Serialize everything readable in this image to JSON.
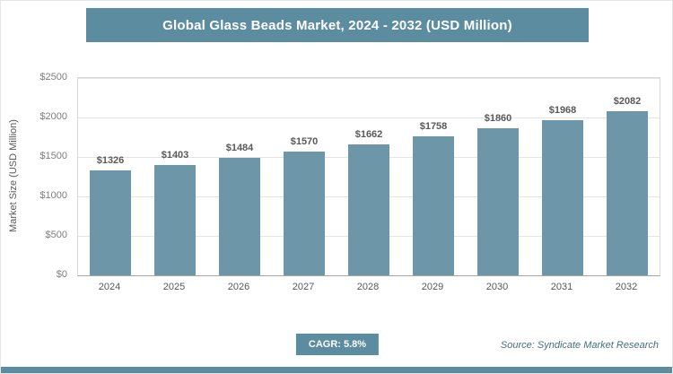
{
  "header": {
    "title": "Global Glass Beads Market, 2024 - 2032 (USD Million)"
  },
  "chart_data": {
    "type": "bar",
    "title": "Global Glass Beads Market, 2024 - 2032 (USD Million)",
    "categories": [
      "2024",
      "2025",
      "2026",
      "2027",
      "2028",
      "2029",
      "2030",
      "2031",
      "2032"
    ],
    "values": [
      1326,
      1403,
      1484,
      1570,
      1662,
      1758,
      1860,
      1968,
      2082
    ],
    "value_labels": [
      "$1326",
      "$1403",
      "$1484",
      "$1570",
      "$1662",
      "$1758",
      "$1860",
      "$1968",
      "$2082"
    ],
    "xlabel": "",
    "ylabel": "Market Size (USD Million)",
    "ylim": [
      0,
      2500
    ],
    "ytick_values": [
      0,
      500,
      1000,
      1500,
      2000,
      2500
    ],
    "ytick_labels": [
      "$0",
      "$500",
      "$1000",
      "$1500",
      "$2000",
      "$2500"
    ],
    "grid": true,
    "legend": "none",
    "bar_color": "#6d97a9"
  },
  "footer": {
    "cagr_label": "CAGR: 5.8%",
    "source": "Source: Syndicate Market Research"
  },
  "colors": {
    "accent": "#5b8ca0",
    "bar": "#6d97a9",
    "tick_text": "#7f7f7f",
    "label_text": "#595959",
    "source_text": "#44707f"
  }
}
